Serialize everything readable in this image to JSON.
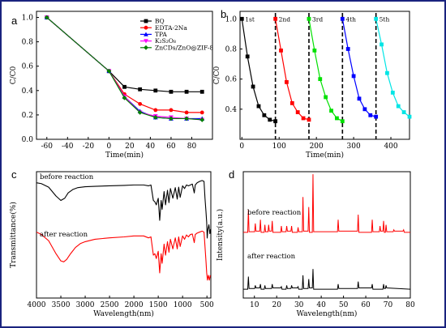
{
  "colors": {
    "border": "#1a237e",
    "black": "#000000",
    "red": "#ff0000",
    "blue": "#0000ff",
    "magenta": "#ff00ff",
    "green": "#008000",
    "lime": "#00e000",
    "cyan": "#00e5e5"
  },
  "chart_data": [
    {
      "type": "line",
      "panel_label": "a",
      "xlabel": "Time(min)",
      "ylabel": "C/C0",
      "xlim": [
        -70,
        100
      ],
      "ylim": [
        0,
        1.05
      ],
      "x_ticks": [
        -60,
        -40,
        -20,
        0,
        20,
        40,
        60,
        80
      ],
      "y_ticks": [
        0.0,
        0.2,
        0.4,
        0.6,
        0.8,
        1.0
      ],
      "x": [
        -60,
        0,
        15,
        30,
        45,
        60,
        75,
        90
      ],
      "series": [
        {
          "name": "BQ",
          "color": "#000000",
          "marker": "square",
          "values": [
            1.0,
            0.56,
            0.43,
            0.41,
            0.4,
            0.39,
            0.39,
            0.39
          ]
        },
        {
          "name": "EDTA-2Na",
          "color": "#ff0000",
          "marker": "circle",
          "values": [
            1.0,
            0.56,
            0.37,
            0.29,
            0.24,
            0.24,
            0.22,
            0.22
          ]
        },
        {
          "name": "TPA",
          "color": "#0000ff",
          "marker": "triangle",
          "values": [
            1.0,
            0.56,
            0.35,
            0.23,
            0.18,
            0.17,
            0.17,
            0.17
          ]
        },
        {
          "name": "K₂S₂O₈",
          "color": "#ff00ff",
          "marker": "triangle-down",
          "values": [
            1.0,
            0.56,
            0.35,
            0.22,
            0.19,
            0.18,
            0.17,
            0.16
          ]
        },
        {
          "name": "ZnCDs/ZnO@ZIF-8",
          "color": "#008000",
          "marker": "diamond",
          "values": [
            1.0,
            0.56,
            0.34,
            0.22,
            0.18,
            0.17,
            0.17,
            0.16
          ]
        }
      ]
    },
    {
      "type": "line",
      "panel_label": "b",
      "xlabel": "Time(min)",
      "ylabel": "C/C0",
      "xlim": [
        -5,
        450
      ],
      "ylim": [
        0.2,
        1.05
      ],
      "x_ticks": [
        0,
        100,
        200,
        300,
        400
      ],
      "y_ticks": [
        0.4,
        0.6,
        0.8,
        1.0
      ],
      "cycle_dividers": [
        90,
        180,
        270,
        360
      ],
      "series": [
        {
          "name": "1st",
          "color": "#000000",
          "x": [
            0,
            15,
            30,
            45,
            60,
            75,
            90
          ],
          "values": [
            1.0,
            0.75,
            0.55,
            0.42,
            0.36,
            0.33,
            0.32
          ]
        },
        {
          "name": "2nd",
          "color": "#ff0000",
          "x": [
            90,
            105,
            120,
            135,
            150,
            165,
            180
          ],
          "values": [
            1.0,
            0.79,
            0.58,
            0.44,
            0.38,
            0.34,
            0.33
          ]
        },
        {
          "name": "3rd",
          "color": "#00e000",
          "x": [
            180,
            195,
            210,
            225,
            240,
            255,
            270
          ],
          "values": [
            1.0,
            0.79,
            0.6,
            0.48,
            0.39,
            0.34,
            0.32
          ]
        },
        {
          "name": "4th",
          "color": "#0000ff",
          "x": [
            270,
            285,
            300,
            315,
            330,
            345,
            360
          ],
          "values": [
            1.0,
            0.8,
            0.62,
            0.47,
            0.4,
            0.36,
            0.35
          ]
        },
        {
          "name": "5th",
          "color": "#00e5e5",
          "x": [
            360,
            375,
            390,
            405,
            420,
            435,
            450
          ],
          "values": [
            1.0,
            0.83,
            0.64,
            0.51,
            0.42,
            0.38,
            0.35
          ]
        }
      ]
    },
    {
      "type": "line",
      "panel_label": "c",
      "xlabel": "Wavelength(nm)",
      "ylabel": "Transmittance(%)",
      "xlim": [
        4000,
        420
      ],
      "ylim": [
        0,
        100
      ],
      "x_ticks": [
        4000,
        3500,
        3000,
        2500,
        2000,
        1500,
        1000,
        500
      ],
      "series": [
        {
          "name": "before reaction",
          "color": "#000000",
          "offset": 58,
          "scale": 35,
          "x": [
            4000,
            3900,
            3750,
            3600,
            3500,
            3420,
            3350,
            3250,
            3150,
            3000,
            2800,
            2500,
            2200,
            2000,
            1800,
            1700,
            1650,
            1600,
            1570,
            1540,
            1500,
            1470,
            1440,
            1420,
            1380,
            1350,
            1310,
            1280,
            1250,
            1200,
            1150,
            1110,
            1080,
            1050,
            1000,
            960,
            920,
            880,
            840,
            800,
            760,
            740,
            700,
            650,
            600,
            560,
            540,
            520,
            505,
            495,
            480,
            460,
            440,
            425
          ],
          "values": [
            0.95,
            0.93,
            0.85,
            0.65,
            0.55,
            0.6,
            0.72,
            0.8,
            0.84,
            0.86,
            0.87,
            0.88,
            0.89,
            0.9,
            0.9,
            0.88,
            0.9,
            0.55,
            0.52,
            0.45,
            0.6,
            0.1,
            0.55,
            0.35,
            0.75,
            0.45,
            0.78,
            0.5,
            0.82,
            0.6,
            0.84,
            0.58,
            0.85,
            0.62,
            0.88,
            0.82,
            0.9,
            0.88,
            0.9,
            0.92,
            0.72,
            0.9,
            0.95,
            0.98,
            1.0,
            0.98,
            0.6,
            0.3,
            0.05,
            -0.3,
            -0.1,
            0.0,
            -0.2,
            -0.1
          ]
        },
        {
          "name": "after reaction",
          "color": "#ff0000",
          "offset": 18,
          "scale": 38,
          "x": [
            4000,
            3900,
            3750,
            3600,
            3500,
            3440,
            3380,
            3300,
            3200,
            3100,
            3000,
            2800,
            2500,
            2200,
            2000,
            1800,
            1700,
            1650,
            1600,
            1570,
            1540,
            1500,
            1470,
            1440,
            1420,
            1380,
            1350,
            1310,
            1280,
            1250,
            1200,
            1150,
            1110,
            1080,
            1050,
            1000,
            960,
            920,
            880,
            840,
            800,
            760,
            740,
            700,
            650,
            600,
            560,
            540,
            520,
            505,
            490,
            470,
            450,
            430
          ],
          "values": [
            0.9,
            0.85,
            0.72,
            0.45,
            0.3,
            0.28,
            0.33,
            0.45,
            0.58,
            0.66,
            0.7,
            0.75,
            0.78,
            0.8,
            0.82,
            0.82,
            0.78,
            0.8,
            0.42,
            0.45,
            0.35,
            0.5,
            0.05,
            0.45,
            0.25,
            0.65,
            0.42,
            0.7,
            0.48,
            0.75,
            0.55,
            0.78,
            0.55,
            0.8,
            0.6,
            0.82,
            0.75,
            0.84,
            0.8,
            0.85,
            0.86,
            0.68,
            0.85,
            0.88,
            0.9,
            0.92,
            0.9,
            0.6,
            0.3,
            0.05,
            -0.1,
            0.0,
            -0.1,
            0.0
          ]
        }
      ]
    },
    {
      "type": "line",
      "panel_label": "d",
      "xlabel": "Wavelength(nm)",
      "ylabel": "Intensity(a.u.)",
      "xlim": [
        5,
        80
      ],
      "ylim": [
        0,
        100
      ],
      "x_ticks": [
        10,
        20,
        30,
        40,
        50,
        60,
        70,
        80
      ],
      "series": [
        {
          "name": "before reaction",
          "color": "#ff0000",
          "baseline": 52,
          "peaks": [
            [
              7.3,
              18
            ],
            [
              10.4,
              7
            ],
            [
              12.7,
              10
            ],
            [
              14.7,
              6
            ],
            [
              16.4,
              6
            ],
            [
              18.0,
              9
            ],
            [
              22.1,
              5
            ],
            [
              24.5,
              5
            ],
            [
              26.7,
              5
            ],
            [
              29.6,
              4
            ],
            [
              31.8,
              28
            ],
            [
              34.4,
              20
            ],
            [
              36.3,
              46
            ],
            [
              47.6,
              10
            ],
            [
              56.6,
              14
            ],
            [
              62.9,
              10
            ],
            [
              66.4,
              5
            ],
            [
              68.0,
              9
            ],
            [
              69.1,
              6
            ],
            [
              72.6,
              2
            ],
            [
              77.0,
              2
            ]
          ]
        },
        {
          "name": "after reaction",
          "color": "#000000",
          "baseline": 7,
          "peaks": [
            [
              7.3,
              10
            ],
            [
              10.4,
              3
            ],
            [
              12.7,
              4
            ],
            [
              14.7,
              3
            ],
            [
              18.0,
              4
            ],
            [
              22.1,
              2
            ],
            [
              24.5,
              3
            ],
            [
              26.7,
              3
            ],
            [
              29.6,
              2
            ],
            [
              31.8,
              11
            ],
            [
              34.4,
              8
            ],
            [
              36.3,
              16
            ],
            [
              47.6,
              4
            ],
            [
              56.6,
              6
            ],
            [
              62.9,
              4
            ],
            [
              68.0,
              4
            ],
            [
              69.1,
              3
            ]
          ]
        }
      ]
    }
  ]
}
